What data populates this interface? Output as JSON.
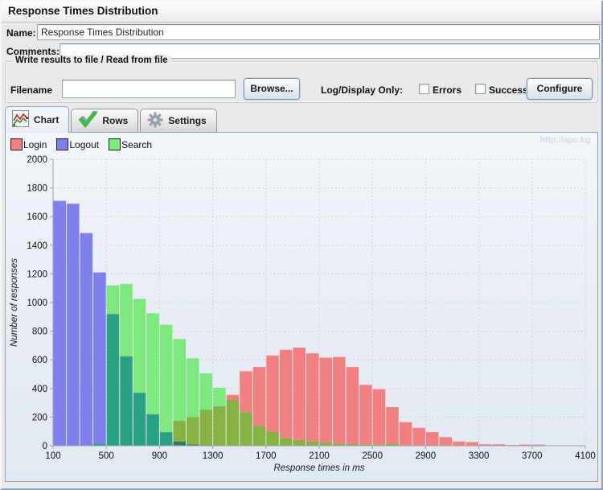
{
  "window": {
    "title": "Response Times Distribution"
  },
  "fields": {
    "name_label": "Name:",
    "name_value": "Response Times Distribution",
    "comments_label": "Comments:",
    "comments_value": ""
  },
  "file_group": {
    "title": "Write results to file / Read from file",
    "filename_label": "Filename",
    "filename_value": "",
    "browse_label": "Browse...",
    "log_display_label": "Log/Display Only:",
    "errors_label": "Errors",
    "errors_checked": false,
    "successes_label": "Successes",
    "successes_checked": false,
    "configure_label": "Configure"
  },
  "tabs": [
    {
      "label": "Chart",
      "icon": "chart-icon",
      "selected": true
    },
    {
      "label": "Rows",
      "icon": "check-icon",
      "selected": false
    },
    {
      "label": "Settings",
      "icon": "gear-icon",
      "selected": false
    }
  ],
  "panel": {
    "watermark": "http://apc.kg"
  },
  "chart_data": {
    "type": "bar",
    "title": "",
    "xlabel": "Response times in ms",
    "ylabel": "Number of responses",
    "xlim": [
      100,
      4100
    ],
    "ylim": [
      0,
      2000
    ],
    "x_ticks": [
      100,
      500,
      900,
      1300,
      1700,
      2100,
      2500,
      2900,
      3300,
      3700,
      4100
    ],
    "y_ticks": [
      0,
      200,
      400,
      600,
      800,
      1000,
      1200,
      1400,
      1600,
      1800,
      2000
    ],
    "bin_width_ms": 100,
    "grid": "dotted",
    "legend_position": "top-left",
    "series": [
      {
        "name": "Login",
        "key": "r",
        "color": "#f28080",
        "x": [
          1000,
          1100,
          1200,
          1300,
          1400,
          1500,
          1600,
          1700,
          1800,
          1900,
          2000,
          2100,
          2200,
          2300,
          2400,
          2500,
          2600,
          2700,
          2800,
          2900,
          3000,
          3100,
          3200,
          3300,
          3400,
          3500,
          3600,
          3700
        ],
        "values": [
          175,
          200,
          250,
          275,
          355,
          520,
          550,
          630,
          670,
          685,
          645,
          615,
          620,
          550,
          425,
          395,
          270,
          165,
          125,
          95,
          60,
          30,
          25,
          10,
          10,
          5,
          8,
          8
        ]
      },
      {
        "name": "Logout",
        "key": "b",
        "color": "#7f7fed",
        "x": [
          100,
          200,
          300,
          400,
          500,
          600,
          700,
          800,
          900,
          1000,
          1100,
          1200
        ],
        "values": [
          1710,
          1690,
          1485,
          1210,
          920,
          625,
          370,
          220,
          95,
          30,
          10,
          5
        ]
      },
      {
        "name": "Search",
        "key": "g",
        "color": "#7de87d",
        "x": [
          400,
          500,
          600,
          700,
          800,
          900,
          1000,
          1100,
          1200,
          1300,
          1400,
          1500,
          1600,
          1700,
          1800,
          1900,
          2000,
          2100,
          2200,
          2300,
          2400,
          2500,
          2600,
          2700
        ],
        "values": [
          15,
          1120,
          1130,
          1025,
          925,
          845,
          745,
          610,
          505,
          405,
          320,
          235,
          140,
          100,
          55,
          40,
          30,
          22,
          15,
          12,
          10,
          8,
          15,
          5
        ]
      }
    ],
    "overlap_colors": {
      "gr": "#86b244",
      "bg": "#2aa184",
      "br": "#9a6fd6",
      "bgr": "#337a63"
    }
  }
}
